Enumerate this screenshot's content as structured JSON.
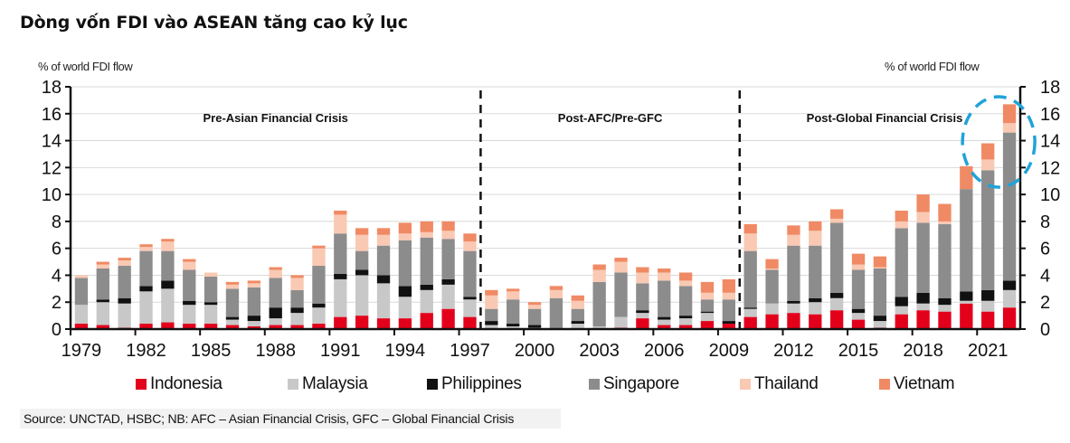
{
  "title": "Dòng vốn FDI vào ASEAN tăng cao kỷ lục",
  "source": "Source: UNCTAD, HSBC; NB: AFC – Asian Financial Crisis, GFC – Global Financial Crisis",
  "chart_data": {
    "type": "bar",
    "stacked": true,
    "title": "Dòng vốn FDI vào ASEAN tăng cao kỷ lục",
    "ylabel_left": "% of world FDI flow",
    "ylabel_right": "% of world FDI flow",
    "xlabel": "",
    "ylim": [
      0,
      18
    ],
    "yticks": [
      0,
      2,
      4,
      6,
      8,
      10,
      12,
      14,
      16,
      18
    ],
    "grid": true,
    "legend_position": "bottom",
    "x_tick_labels": [
      "1979",
      "1982",
      "1985",
      "1988",
      "1991",
      "1994",
      "1997",
      "2000",
      "2003",
      "2006",
      "2009",
      "2012",
      "2015",
      "2018",
      "2021"
    ],
    "categories": [
      "1979",
      "1980",
      "1981",
      "1982",
      "1983",
      "1984",
      "1985",
      "1986",
      "1987",
      "1988",
      "1989",
      "1990",
      "1991",
      "1992",
      "1993",
      "1994",
      "1995",
      "1996",
      "1997",
      "1998",
      "1999",
      "2000",
      "2001",
      "2002",
      "2003",
      "2004",
      "2005",
      "2006",
      "2007",
      "2008",
      "2009",
      "2010",
      "2011",
      "2012",
      "2013",
      "2014",
      "2015",
      "2016",
      "2017",
      "2018",
      "2019",
      "2020",
      "2021",
      "2022"
    ],
    "series": [
      {
        "name": "Indonesia",
        "color": "#e3001b",
        "values": [
          0.4,
          0.3,
          0.1,
          0.4,
          0.5,
          0.4,
          0.4,
          0.3,
          0.2,
          0.3,
          0.3,
          0.4,
          0.9,
          1.0,
          0.8,
          0.8,
          1.2,
          1.5,
          0.9,
          0.0,
          0.0,
          0.0,
          0.0,
          0.0,
          0.0,
          0.1,
          0.8,
          0.3,
          0.3,
          0.6,
          0.4,
          0.9,
          1.1,
          1.2,
          1.1,
          1.4,
          0.7,
          0.1,
          1.1,
          1.4,
          1.3,
          1.9,
          1.3,
          1.6
        ]
      },
      {
        "name": "Malaysia",
        "color": "#c8c8c8",
        "values": [
          1.4,
          1.7,
          1.8,
          2.4,
          2.5,
          1.4,
          1.4,
          0.4,
          0.4,
          0.5,
          0.9,
          1.2,
          2.8,
          3.0,
          2.6,
          1.6,
          1.7,
          1.8,
          1.3,
          0.3,
          0.2,
          0.1,
          0.0,
          0.4,
          0.2,
          0.8,
          0.4,
          0.4,
          0.5,
          0.6,
          0.0,
          0.6,
          0.8,
          0.7,
          0.9,
          0.9,
          0.5,
          0.5,
          0.6,
          0.5,
          0.5,
          0.2,
          0.8,
          1.3
        ]
      },
      {
        "name": "Philippines",
        "color": "#111111",
        "values": [
          0.0,
          0.2,
          0.4,
          0.4,
          0.6,
          0.3,
          0.2,
          0.2,
          0.4,
          0.8,
          0.4,
          0.3,
          0.4,
          0.4,
          0.6,
          0.8,
          0.4,
          0.4,
          0.2,
          0.3,
          0.2,
          0.2,
          0.0,
          0.2,
          0.0,
          0.0,
          0.2,
          0.2,
          0.2,
          0.1,
          0.2,
          0.1,
          0.0,
          0.2,
          0.3,
          0.4,
          0.3,
          0.4,
          0.7,
          0.8,
          0.5,
          0.7,
          0.8,
          0.7
        ]
      },
      {
        "name": "Singapore",
        "color": "#8c8c8c",
        "values": [
          2.0,
          2.3,
          2.4,
          2.6,
          2.2,
          2.3,
          1.9,
          2.1,
          2.1,
          2.2,
          1.3,
          2.8,
          3.0,
          1.4,
          2.2,
          3.4,
          3.5,
          3.0,
          3.4,
          0.9,
          1.8,
          1.2,
          2.3,
          0.9,
          3.3,
          3.3,
          2.0,
          2.7,
          2.2,
          0.9,
          1.6,
          4.2,
          2.5,
          4.1,
          3.9,
          5.2,
          2.9,
          3.5,
          5.1,
          5.2,
          5.5,
          7.6,
          8.9,
          11.0
        ]
      },
      {
        "name": "Thailand",
        "color": "#f9c9b3",
        "values": [
          0.2,
          0.3,
          0.4,
          0.3,
          0.7,
          0.6,
          0.3,
          0.3,
          0.3,
          0.6,
          0.9,
          1.3,
          1.4,
          1.2,
          0.8,
          0.5,
          0.4,
          0.6,
          0.7,
          1.0,
          0.6,
          0.3,
          0.6,
          0.6,
          0.9,
          0.8,
          0.8,
          0.6,
          0.4,
          0.5,
          0.5,
          1.3,
          0.1,
          0.8,
          1.1,
          0.3,
          0.4,
          0.1,
          0.5,
          0.8,
          0.2,
          0.0,
          0.8,
          0.7
        ]
      },
      {
        "name": "Vietnam",
        "color": "#f08a64",
        "values": [
          0.0,
          0.2,
          0.2,
          0.2,
          0.2,
          0.2,
          0.0,
          0.2,
          0.2,
          0.2,
          0.2,
          0.2,
          0.3,
          0.5,
          0.5,
          0.8,
          0.8,
          0.7,
          0.6,
          0.4,
          0.2,
          0.2,
          0.3,
          0.4,
          0.4,
          0.3,
          0.4,
          0.3,
          0.6,
          0.8,
          1.0,
          0.7,
          0.7,
          0.7,
          0.7,
          0.7,
          0.8,
          0.8,
          0.8,
          1.3,
          1.3,
          1.7,
          1.2,
          1.4
        ]
      }
    ],
    "periods": [
      {
        "label": "Pre-Asian Financial Crisis",
        "from": "1979",
        "to": "1997"
      },
      {
        "label": "Post-AFC/Pre-GFC",
        "from": "1998",
        "to": "2009"
      },
      {
        "label": "Post-Global Financial Crisis",
        "from": "2010",
        "to": "2022"
      }
    ],
    "period_dividers_after": [
      "1997",
      "2009"
    ],
    "annotation": {
      "type": "dashed-circle",
      "color": "#1fa3d8",
      "highlights": [
        "2021",
        "2022"
      ]
    }
  }
}
